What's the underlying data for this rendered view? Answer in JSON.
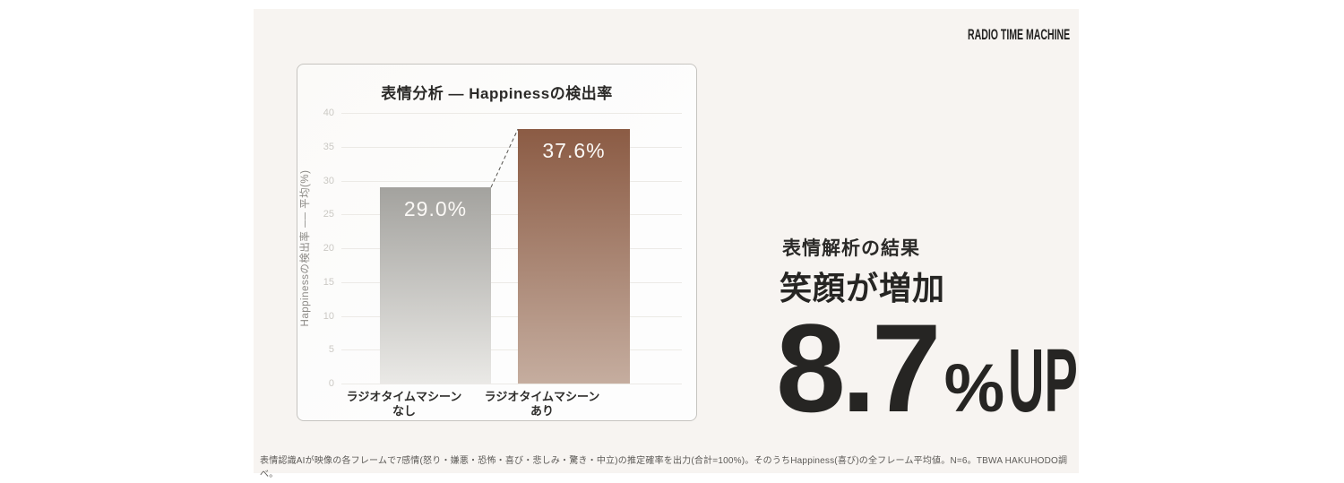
{
  "brand": {
    "logo": "RADIO TIME MACHINE"
  },
  "chart_data": {
    "type": "bar",
    "title": "表情分析 — Happinessの検出率",
    "ylabel": "Happinessの検出率 ── 平均(%)",
    "categories": [
      {
        "line1": "ラジオタイムマシーン",
        "line2": "なし"
      },
      {
        "line1": "ラジオタイムマシーン",
        "line2": "あり"
      }
    ],
    "values": [
      29.0,
      37.6
    ],
    "value_labels": [
      "29.0%",
      "37.6%"
    ],
    "ylim": [
      0,
      40
    ],
    "yticks": [
      0,
      5,
      10,
      15,
      20,
      25,
      30,
      35,
      40
    ],
    "grid": true,
    "legend": "none",
    "bar_gradients": [
      {
        "top": "#a3a29e",
        "bottom": "#eae9e6"
      },
      {
        "top": "#8b5b44",
        "bottom": "#c5ad9f"
      }
    ],
    "connector_line_color": "#55534f"
  },
  "result": {
    "subtitle": "表情解析の結果",
    "headline": "笑顔が増加",
    "big_number": "8.7",
    "percent_sign": "%",
    "up_label": "UP"
  },
  "footnote": "表情認識AIが映像の各フレームで7感情(怒り・嫌悪・恐怖・喜び・悲しみ・驚き・中立)の推定確率を出力(合計=100%)。そのうちHappiness(喜び)の全フレーム平均値。N=6。TBWA HAKUHODO調べ。"
}
